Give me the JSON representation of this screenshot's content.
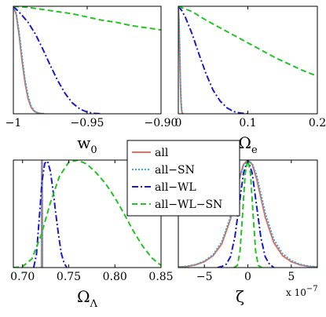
{
  "legend": {
    "items": [
      {
        "label": "all",
        "color": "#E8705A",
        "dash": "solid"
      },
      {
        "label": "all−SN",
        "color": "#2DAAE1",
        "dash": "dotted"
      },
      {
        "label": "all−WL",
        "color": "#1A1ACC",
        "dash": "dashdot"
      },
      {
        "label": "all−WL−SN",
        "color": "#22C322",
        "dash": "dashed"
      }
    ]
  },
  "chart_data": [
    {
      "type": "line",
      "id": "w0",
      "xlabel_main": "w",
      "xlabel_sub": "0",
      "xlim": [
        -1.0,
        -0.9
      ],
      "ylim": [
        0,
        1
      ],
      "xticks": [
        -1.0,
        -0.95,
        -0.9
      ],
      "xticklabels": [
        "−1",
        "−0.95",
        "−0.90"
      ],
      "series": [
        {
          "key": "all",
          "x": [
            -1.0,
            -0.998,
            -0.996,
            -0.994,
            -0.992,
            -0.99,
            -0.988,
            -0.986,
            -0.984,
            -0.982,
            -0.98
          ],
          "y": [
            1.0,
            0.92,
            0.72,
            0.48,
            0.28,
            0.14,
            0.06,
            0.025,
            0.01,
            0.003,
            0
          ]
        },
        {
          "key": "all−SN",
          "x": [
            -1.0,
            -0.998,
            -0.996,
            -0.994,
            -0.992,
            -0.99,
            -0.988,
            -0.986,
            -0.984,
            -0.982,
            -0.98,
            -0.978
          ],
          "y": [
            1.0,
            0.93,
            0.75,
            0.52,
            0.31,
            0.16,
            0.075,
            0.03,
            0.012,
            0.004,
            0.001,
            0
          ]
        },
        {
          "key": "all−WL",
          "x": [
            -1.0,
            -0.995,
            -0.99,
            -0.985,
            -0.98,
            -0.975,
            -0.97,
            -0.965,
            -0.96,
            -0.955,
            -0.95,
            -0.945,
            -0.94
          ],
          "y": [
            1.0,
            0.93,
            0.85,
            0.74,
            0.6,
            0.45,
            0.31,
            0.19,
            0.1,
            0.045,
            0.015,
            0.004,
            0
          ]
        },
        {
          "key": "all−WL−SN",
          "x": [
            -1.0,
            -0.99,
            -0.98,
            -0.97,
            -0.96,
            -0.95,
            -0.94,
            -0.93,
            -0.92,
            -0.91,
            -0.9
          ],
          "y": [
            1.0,
            0.99,
            0.97,
            0.95,
            0.93,
            0.9,
            0.87,
            0.85,
            0.82,
            0.8,
            0.78
          ]
        }
      ]
    },
    {
      "type": "line",
      "id": "omega_e",
      "xlabel_main": "Ω",
      "xlabel_sub": "e",
      "xlim": [
        0,
        0.2
      ],
      "ylim": [
        0,
        1
      ],
      "xticks": [
        0,
        0.1,
        0.2
      ],
      "xticklabels": [
        "0",
        "0.1",
        "0.2"
      ],
      "series": [
        {
          "key": "all",
          "x": [
            0,
            0.001,
            0.002,
            0.003,
            0.004,
            0.005,
            0.006
          ],
          "y": [
            1.0,
            0.85,
            0.55,
            0.27,
            0.09,
            0.02,
            0
          ]
        },
        {
          "key": "all−SN",
          "x": [
            0,
            0.001,
            0.002,
            0.003,
            0.004,
            0.005,
            0.006,
            0.007
          ],
          "y": [
            1.0,
            0.87,
            0.6,
            0.32,
            0.12,
            0.03,
            0.005,
            0
          ]
        },
        {
          "key": "all−WL",
          "x": [
            0,
            0.005,
            0.01,
            0.02,
            0.03,
            0.04,
            0.05,
            0.06,
            0.07,
            0.08,
            0.09,
            0.1
          ],
          "y": [
            1.0,
            0.96,
            0.9,
            0.74,
            0.55,
            0.37,
            0.22,
            0.12,
            0.055,
            0.02,
            0.006,
            0
          ]
        },
        {
          "key": "all−WL−SN",
          "x": [
            0,
            0.02,
            0.04,
            0.06,
            0.08,
            0.1,
            0.12,
            0.14,
            0.16,
            0.18,
            0.2
          ],
          "y": [
            1.0,
            0.95,
            0.87,
            0.8,
            0.73,
            0.66,
            0.59,
            0.52,
            0.46,
            0.4,
            0.35
          ]
        }
      ]
    },
    {
      "type": "line",
      "id": "omega_lambda",
      "xlabel_main": "Ω",
      "xlabel_sub": "Λ",
      "xlim": [
        0.69,
        0.85
      ],
      "ylim": [
        0,
        1
      ],
      "xticks": [
        0.7,
        0.75,
        0.8,
        0.85
      ],
      "xticklabels": [
        "0.70",
        "0.75",
        "0.80",
        "0.85"
      ],
      "series": [
        {
          "key": "all",
          "x": [
            0.7205,
            0.7208,
            0.721,
            0.7212,
            0.7215
          ],
          "y": [
            0,
            1.0,
            1.0,
            1.0,
            0
          ]
        },
        {
          "key": "all−SN",
          "x": [
            0.7207,
            0.721,
            0.7212,
            0.7214
          ],
          "y": [
            0,
            1.0,
            1.0,
            0
          ]
        },
        {
          "key": "all−WL",
          "x": [
            0.712,
            0.715,
            0.718,
            0.721,
            0.724,
            0.727,
            0.73,
            0.733,
            0.736,
            0.739,
            0.742,
            0.745,
            0.748
          ],
          "y": [
            0,
            0.12,
            0.45,
            0.8,
            0.97,
            0.99,
            0.9,
            0.72,
            0.5,
            0.3,
            0.13,
            0.04,
            0
          ]
        },
        {
          "key": "all−WL−SN",
          "x": [
            0.69,
            0.7,
            0.71,
            0.72,
            0.73,
            0.74,
            0.75,
            0.76,
            0.77,
            0.78,
            0.79,
            0.8,
            0.81,
            0.82,
            0.83,
            0.84,
            0.85
          ],
          "y": [
            0,
            0.01,
            0.08,
            0.3,
            0.6,
            0.85,
            0.98,
            1.0,
            0.96,
            0.88,
            0.78,
            0.65,
            0.5,
            0.34,
            0.2,
            0.09,
            0.02
          ]
        }
      ]
    },
    {
      "type": "line",
      "id": "zeta",
      "xlabel_main": "ζ",
      "xlabel_sub": "",
      "xscale_label": "x 10",
      "xscale_exp": "−7",
      "xlim": [
        -8,
        8
      ],
      "ylim": [
        0,
        1
      ],
      "xticks": [
        -5,
        0,
        5
      ],
      "xticklabels": [
        "−5",
        "0",
        "5"
      ],
      "series": [
        {
          "key": "all",
          "x": [
            -8,
            -7,
            -6,
            -5,
            -4,
            -3,
            -2,
            -1.5,
            -1,
            -0.5,
            0,
            0.5,
            1,
            1.5,
            2,
            3,
            4,
            5,
            6,
            7,
            8
          ],
          "y": [
            0.005,
            0.01,
            0.025,
            0.055,
            0.11,
            0.22,
            0.45,
            0.63,
            0.82,
            0.96,
            1.0,
            0.96,
            0.83,
            0.65,
            0.47,
            0.23,
            0.11,
            0.055,
            0.025,
            0.01,
            0.005
          ]
        },
        {
          "key": "all−SN",
          "x": [
            -8,
            -7,
            -6,
            -5,
            -4,
            -3,
            -2,
            -1.5,
            -1,
            -0.5,
            0,
            0.5,
            1,
            1.5,
            2,
            3,
            4,
            5,
            6,
            7,
            8
          ],
          "y": [
            0.005,
            0.012,
            0.028,
            0.06,
            0.12,
            0.24,
            0.47,
            0.64,
            0.82,
            0.95,
            0.99,
            0.97,
            0.86,
            0.69,
            0.51,
            0.26,
            0.13,
            0.065,
            0.03,
            0.013,
            0.006
          ]
        },
        {
          "key": "all−WL",
          "x": [
            -3.5,
            -3,
            -2.5,
            -2,
            -1.5,
            -1,
            -0.5,
            0,
            0.5,
            1,
            1.5,
            2,
            2.5,
            3
          ],
          "y": [
            0,
            0.01,
            0.03,
            0.1,
            0.28,
            0.58,
            0.88,
            1.0,
            0.88,
            0.58,
            0.28,
            0.1,
            0.03,
            0
          ]
        },
        {
          "key": "all−WL−SN",
          "x": [
            -1.6,
            -1.2,
            -0.9,
            -0.6,
            -0.3,
            0,
            0.3,
            0.6,
            0.9,
            1.2,
            1.6
          ],
          "y": [
            0,
            0.02,
            0.15,
            0.5,
            0.88,
            1.0,
            0.88,
            0.5,
            0.15,
            0.02,
            0
          ]
        }
      ]
    }
  ]
}
